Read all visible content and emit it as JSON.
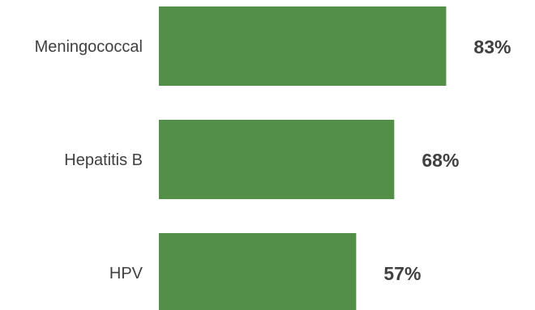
{
  "chart_data": {
    "type": "bar",
    "orientation": "horizontal",
    "categories": [
      "Meningococcal",
      "Hepatitis B",
      "HPV"
    ],
    "values": [
      83,
      68,
      57
    ],
    "value_labels": [
      "83%",
      "68%",
      "57%"
    ],
    "unit": "%",
    "xlim": [
      0,
      100
    ],
    "grid": false,
    "legend": "none",
    "bar_color": "#548F4A",
    "title": "",
    "xlabel": "",
    "ylabel": ""
  }
}
